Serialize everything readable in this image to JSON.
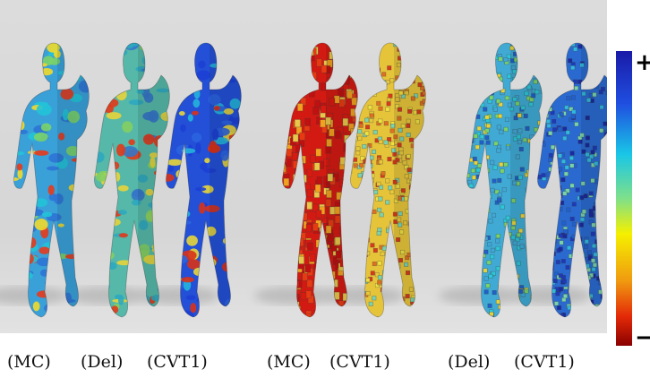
{
  "colors": {
    "background_gray": "#d8d8d8",
    "scale_top": "#1a1aa8",
    "scale_mid": "#f5f000",
    "scale_bottom": "#8a0000"
  },
  "scale": {
    "plus_label": "+",
    "minus_label": "−"
  },
  "captions": [
    {
      "text": "(MC)"
    },
    {
      "text": "(Del)"
    },
    {
      "text": "(CVT1)"
    },
    {
      "text": "(MC)"
    },
    {
      "text": "(CVT1)"
    },
    {
      "text": "(Del)"
    },
    {
      "text": "(CVT1)"
    }
  ],
  "figures": [
    {
      "palette": [
        "#2f74d6",
        "#22c3d8",
        "#f2d92a",
        "#e83a1c",
        "#7ad36a"
      ],
      "base": "#3aa0d8"
    },
    {
      "palette": [
        "#2ea8c0",
        "#e8d43a",
        "#e23a1a",
        "#84cf62",
        "#3576c8"
      ],
      "base": "#55b8a8"
    },
    {
      "palette": [
        "#1d3fd4",
        "#2b63e0",
        "#23b4dc",
        "#e8d53a",
        "#d83218"
      ],
      "base": "#2350d6"
    },
    {
      "palette": [
        "#d81a10",
        "#e83a12",
        "#f2a020",
        "#c01010",
        "#e8c84a"
      ],
      "base": "#d21a12"
    },
    {
      "palette": [
        "#e8c83a",
        "#f0e040",
        "#e07020",
        "#7ad3b0",
        "#d83a1a"
      ],
      "base": "#e6c43a"
    },
    {
      "palette": [
        "#3fa8d6",
        "#2cc7d8",
        "#7ad36a",
        "#2060c8",
        "#e8d43a"
      ],
      "base": "#40aad4"
    },
    {
      "palette": [
        "#2060d0",
        "#1d3ab8",
        "#30b8e0",
        "#7ad3a8",
        "#1a2aa0"
      ],
      "base": "#2a6ad0"
    }
  ]
}
